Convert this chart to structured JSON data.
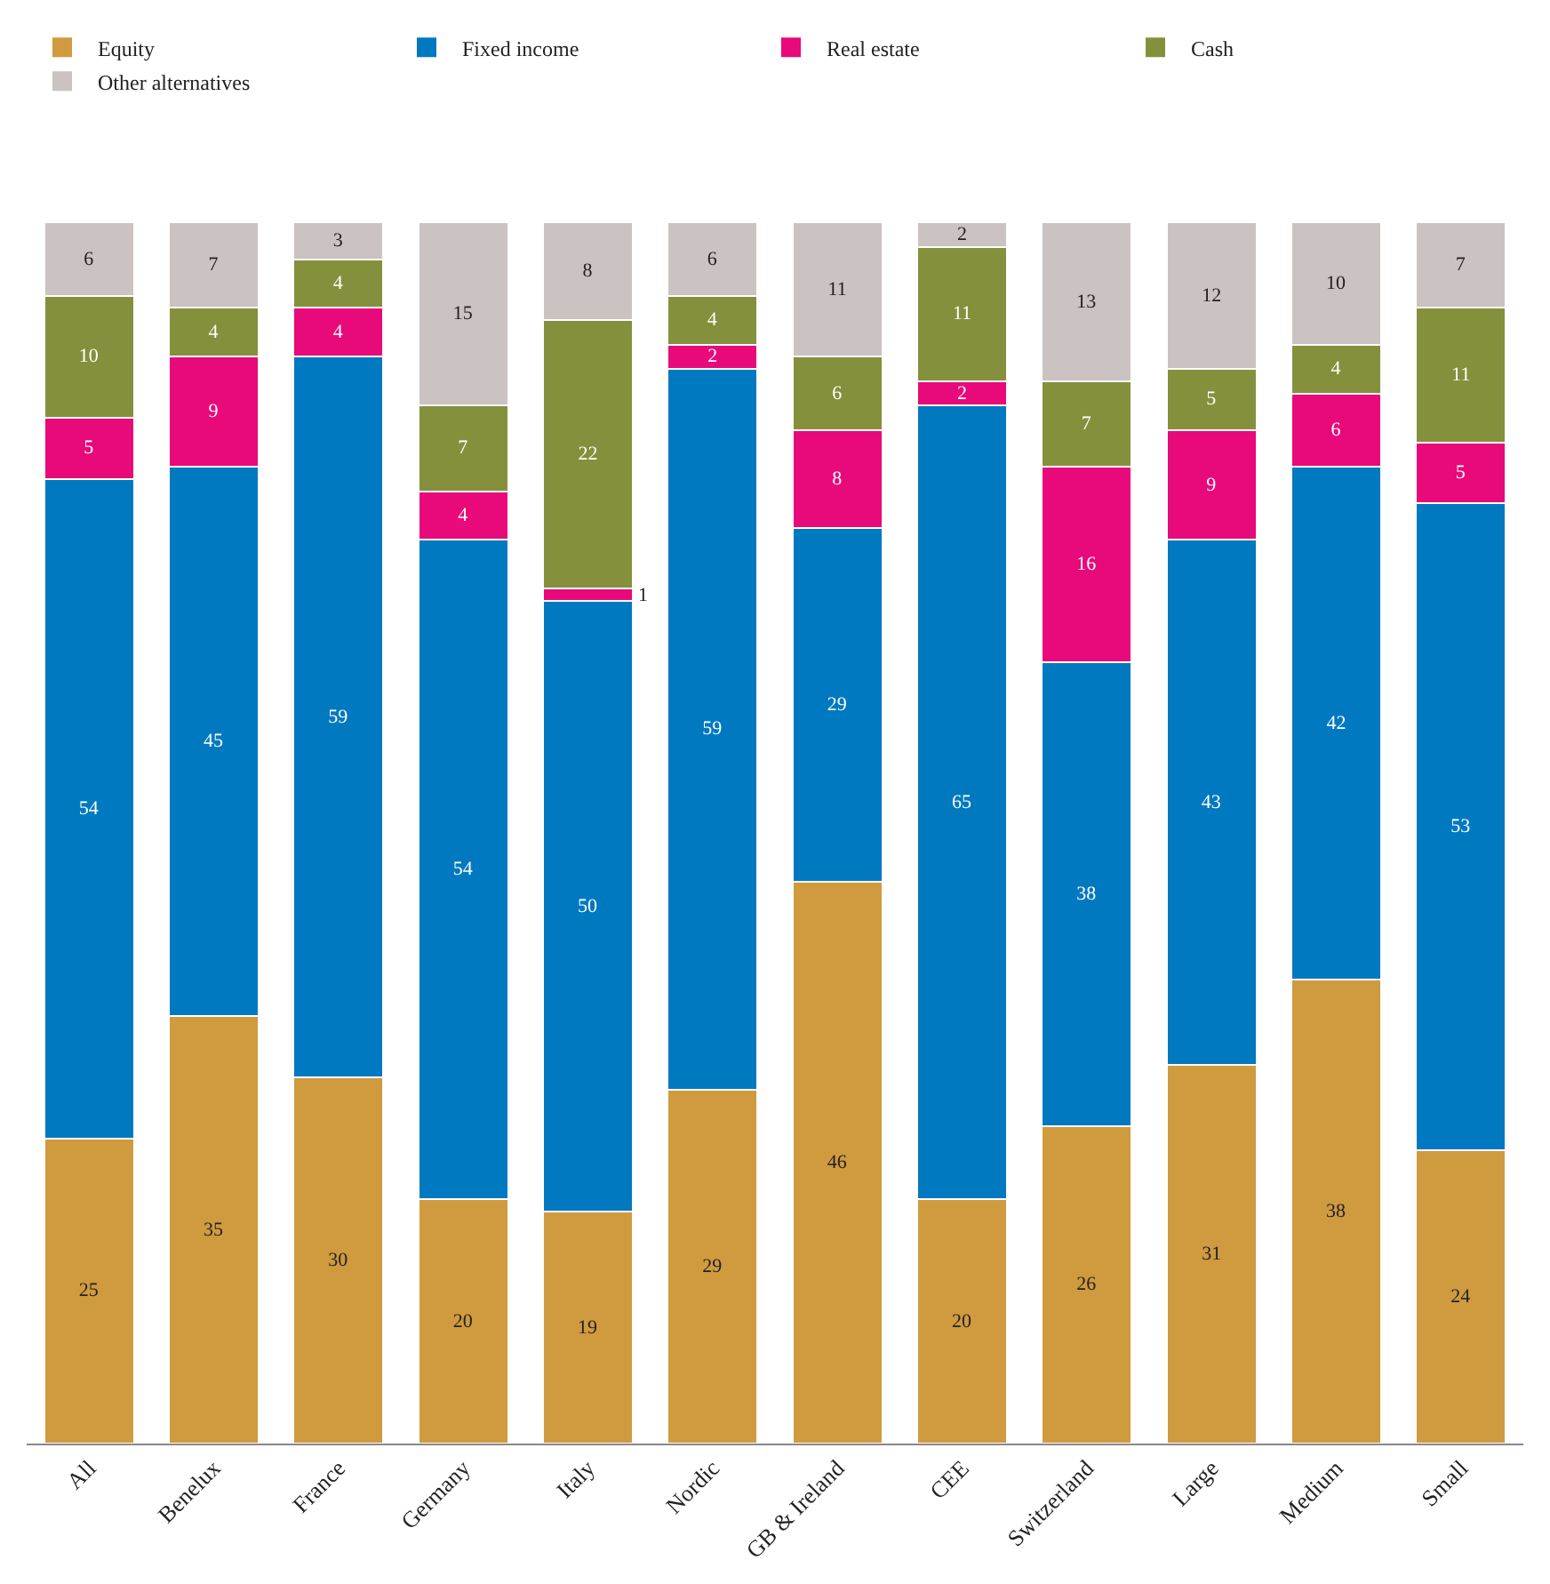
{
  "chart_data": {
    "type": "bar",
    "stacked": true,
    "legend": "top",
    "categories": [
      "All",
      "Benelux",
      "France",
      "Germany",
      "Italy",
      "Nordic",
      "GB & Ireland",
      "CEE",
      "Switzerland",
      "Large",
      "Medium",
      "Small"
    ],
    "series": [
      {
        "name": "Equity",
        "color": "#d09a3e",
        "values": [
          25,
          35,
          30,
          20,
          19,
          29,
          46,
          20,
          26,
          31,
          38,
          24
        ],
        "value_labels": [
          "25",
          "35",
          "30",
          "20",
          "19",
          "29",
          "46",
          "20",
          "26",
          "31",
          "38",
          "24"
        ]
      },
      {
        "name": "Fixed income",
        "color": "#0079c1",
        "values": [
          54,
          45,
          59,
          54,
          50,
          59,
          29,
          65,
          38,
          43,
          42,
          53
        ],
        "value_labels": [
          "54",
          "45",
          "59",
          "54",
          "50",
          "59",
          "29",
          "65",
          "38",
          "43",
          "42",
          "53"
        ]
      },
      {
        "name": "Real estate",
        "color": "#e8097a",
        "values": [
          5,
          9,
          4,
          4,
          1,
          2,
          8,
          2,
          16,
          9,
          6,
          5
        ],
        "value_labels": [
          "5",
          "9",
          "4",
          "4",
          null,
          "2",
          "8",
          "2",
          "16",
          "9",
          "6",
          "5"
        ]
      },
      {
        "name": "Cash",
        "color": "#85903c",
        "values": [
          10,
          4,
          4,
          7,
          22,
          4,
          6,
          11,
          7,
          5,
          4,
          11
        ],
        "value_labels": [
          "10",
          "4",
          "4",
          "7",
          "22",
          "4",
          "6",
          "11",
          "7",
          "5",
          "4",
          "11"
        ]
      },
      {
        "name": "Other alternatives",
        "color": "#cbc2c2",
        "values": [
          6,
          7,
          3,
          15,
          8,
          6,
          11,
          2,
          13,
          12,
          10,
          7
        ],
        "value_labels": [
          "6",
          "7",
          "3",
          "15",
          "8",
          "6",
          "11",
          "2",
          "13",
          "12",
          "10",
          "7"
        ]
      }
    ],
    "annotations": [
      {
        "text": "1",
        "x": "Italy",
        "y": 69.5
      }
    ]
  }
}
